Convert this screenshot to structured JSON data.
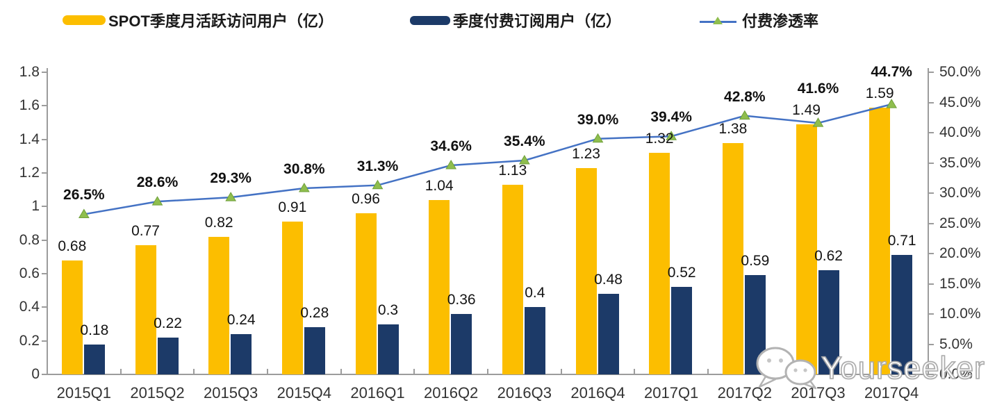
{
  "legend": {
    "items": [
      {
        "label": "SPOT季度月活跃访问用户（亿）",
        "swatch": "yellow-bar-swatch"
      },
      {
        "label": "季度付费订阅用户（亿）",
        "swatch": "navy-bar-swatch"
      },
      {
        "label": "付费渗透率",
        "swatch": "line-marker-swatch"
      }
    ]
  },
  "colors": {
    "mau_bar": "#FCBE00",
    "paid_bar": "#1C3A68",
    "line": "#4472C4",
    "marker": "#8FBE4E",
    "marker_edge": "#6FA03A",
    "axis": "#9C9C9C"
  },
  "chart_data": {
    "type": "bar",
    "subtype": "grouped-bars-with-line-overlay",
    "categories": [
      "2015Q1",
      "2015Q2",
      "2015Q3",
      "2015Q4",
      "2016Q1",
      "2016Q2",
      "2016Q3",
      "2016Q4",
      "2017Q1",
      "2017Q2",
      "2017Q3",
      "2017Q4"
    ],
    "series": [
      {
        "name": "SPOT季度月活跃访问用户（亿）",
        "type": "bar",
        "axis": "left",
        "values": [
          0.68,
          0.77,
          0.82,
          0.91,
          0.96,
          1.04,
          1.13,
          1.23,
          1.32,
          1.38,
          1.49,
          1.59
        ],
        "labels": [
          "0.68",
          "0.77",
          "0.82",
          "0.91",
          "0.96",
          "1.04",
          "1.13",
          "1.23",
          "1.32",
          "1.38",
          "1.49",
          "1.59"
        ]
      },
      {
        "name": "季度付费订阅用户（亿）",
        "type": "bar",
        "axis": "left",
        "values": [
          0.18,
          0.22,
          0.24,
          0.28,
          0.3,
          0.36,
          0.4,
          0.48,
          0.52,
          0.59,
          0.62,
          0.71
        ],
        "labels": [
          "0.18",
          "0.22",
          "0.24",
          "0.28",
          "0.3",
          "0.36",
          "0.4",
          "0.48",
          "0.52",
          "0.59",
          "0.62",
          "0.71"
        ]
      },
      {
        "name": "付费渗透率",
        "type": "line",
        "axis": "right",
        "values": [
          26.5,
          28.6,
          29.3,
          30.8,
          31.3,
          34.6,
          35.4,
          39.0,
          39.4,
          42.8,
          41.6,
          44.7
        ],
        "labels": [
          "26.5%",
          "28.6%",
          "29.3%",
          "30.8%",
          "31.3%",
          "34.6%",
          "35.4%",
          "39.0%",
          "39.4%",
          "42.8%",
          "41.6%",
          "44.7%"
        ]
      }
    ],
    "left_axis": {
      "min": 0,
      "max": 1.8,
      "step": 0.2,
      "ticks": [
        "0",
        "0.2",
        "0.4",
        "0.6",
        "0.8",
        "1",
        "1.2",
        "1.4",
        "1.6",
        "1.8"
      ]
    },
    "right_axis": {
      "min": 0,
      "max": 50,
      "step": 5,
      "ticks": [
        "0.0%",
        "5.0%",
        "10.0%",
        "15.0%",
        "20.0%",
        "25.0%",
        "30.0%",
        "35.0%",
        "40.0%",
        "45.0%",
        "50.0%"
      ]
    },
    "grid": false,
    "legend_position": "top"
  },
  "watermark": {
    "text": "Yourseeker"
  }
}
